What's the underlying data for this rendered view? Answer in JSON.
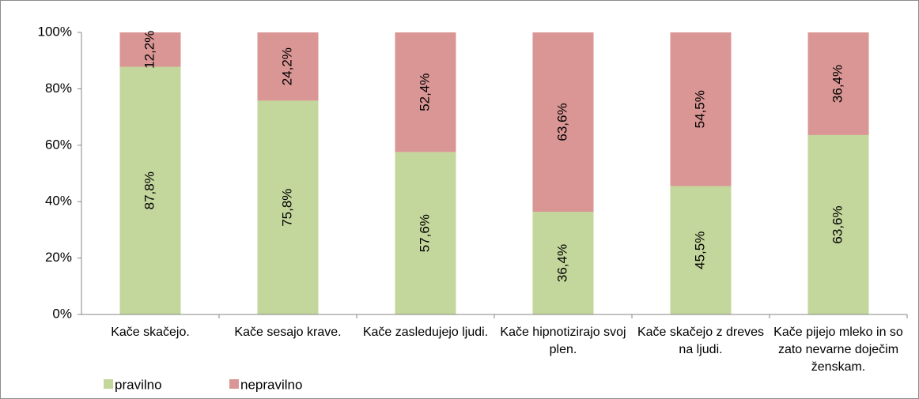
{
  "chart_data": {
    "type": "stacked_bar",
    "categories": [
      "Kače skačejo.",
      "Kače sesajo krave.",
      "Kače zasledujejo ljudi.",
      "Kače hipnotizirajo svoj plen.",
      "Kače skačejo z dreves na ljudi.",
      "Kače pijejo mleko in so zato nevarne doječim ženskam."
    ],
    "series": [
      {
        "name": "pravilno",
        "color": "#c3d69b",
        "values": [
          87.8,
          75.8,
          57.6,
          36.4,
          45.5,
          63.6
        ],
        "value_labels": [
          "87,8%",
          "75,8%",
          "57,6%",
          "36,4%",
          "45,5%",
          "63,6%"
        ]
      },
      {
        "name": "nepravilno",
        "color": "#d99694",
        "values": [
          12.2,
          24.2,
          52.4,
          63.6,
          54.5,
          36.4
        ],
        "value_labels": [
          "12,2%",
          "24,2%",
          "52,4%",
          "63,6%",
          "54,5%",
          "36,4%"
        ]
      }
    ],
    "ylim": [
      0,
      100
    ],
    "yticks": [
      {
        "value": 0,
        "label": "0%"
      },
      {
        "value": 20,
        "label": "20%"
      },
      {
        "value": 40,
        "label": "40%"
      },
      {
        "value": 60,
        "label": "60%"
      },
      {
        "value": 80,
        "label": "80%"
      },
      {
        "value": 100,
        "label": "100%"
      }
    ],
    "legend": "bottom-left"
  }
}
